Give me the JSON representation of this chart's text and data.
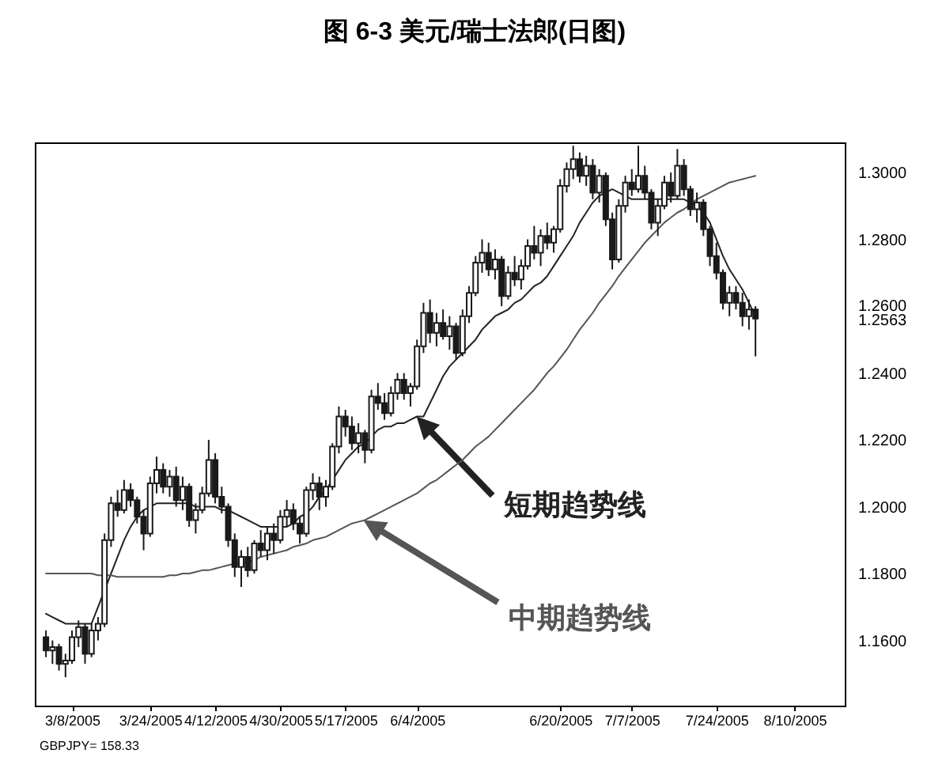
{
  "chart_data": {
    "type": "candlestick",
    "title": "图 6-3  美元/瑞士法郎(日图)",
    "categories": [
      null,
      null,
      null,
      null,
      "3/8/2005",
      null,
      null,
      null,
      null,
      null,
      null,
      null,
      null,
      null,
      null,
      null,
      "3/24/2005",
      null,
      null,
      null,
      null,
      null,
      null,
      null,
      null,
      null,
      "4/12/2005",
      null,
      null,
      null,
      null,
      null,
      null,
      null,
      null,
      null,
      "4/30/2005",
      null,
      null,
      null,
      null,
      null,
      null,
      null,
      null,
      null,
      "5/17/2005",
      null,
      null,
      null,
      null,
      null,
      null,
      null,
      null,
      null,
      null,
      "6/4/2005",
      null,
      null,
      null,
      null,
      null,
      null,
      null,
      null,
      null,
      null,
      null,
      null,
      null,
      null,
      null,
      null,
      null,
      null,
      null,
      null,
      null,
      "6/20/2005",
      null,
      null,
      null,
      null,
      null,
      null,
      null,
      null,
      null,
      null,
      "7/7/2005",
      null,
      null,
      null,
      null,
      null,
      null,
      null,
      null,
      null,
      null,
      null,
      null,
      "7/24/2005",
      null,
      null,
      null,
      null,
      null,
      null,
      null,
      null,
      null,
      null,
      null,
      "8/10/2005",
      null,
      null,
      null,
      null,
      null,
      null
    ],
    "ohlc": [
      [
        1.161,
        1.163,
        1.155,
        1.157
      ],
      [
        1.157,
        1.16,
        1.153,
        1.158
      ],
      [
        1.158,
        1.159,
        1.151,
        1.153
      ],
      [
        1.153,
        1.156,
        1.149,
        1.154
      ],
      [
        1.154,
        1.163,
        1.153,
        1.161
      ],
      [
        1.161,
        1.166,
        1.158,
        1.164
      ],
      [
        1.164,
        1.165,
        1.153,
        1.156
      ],
      [
        1.156,
        1.165,
        1.155,
        1.163
      ],
      [
        1.163,
        1.167,
        1.16,
        1.165
      ],
      [
        1.165,
        1.192,
        1.164,
        1.19
      ],
      [
        1.19,
        1.203,
        1.188,
        1.201
      ],
      [
        1.201,
        1.205,
        1.197,
        1.199
      ],
      [
        1.199,
        1.208,
        1.198,
        1.205
      ],
      [
        1.205,
        1.207,
        1.2,
        1.202
      ],
      [
        1.202,
        1.203,
        1.195,
        1.197
      ],
      [
        1.197,
        1.199,
        1.187,
        1.192
      ],
      [
        1.192,
        1.209,
        1.191,
        1.207
      ],
      [
        1.207,
        1.215,
        1.204,
        1.211
      ],
      [
        1.211,
        1.213,
        1.204,
        1.206
      ],
      [
        1.206,
        1.211,
        1.203,
        1.209
      ],
      [
        1.209,
        1.212,
        1.2,
        1.202
      ],
      [
        1.202,
        1.209,
        1.199,
        1.206
      ],
      [
        1.206,
        1.207,
        1.194,
        1.196
      ],
      [
        1.196,
        1.201,
        1.192,
        1.199
      ],
      [
        1.199,
        1.206,
        1.198,
        1.204
      ],
      [
        1.204,
        1.22,
        1.203,
        1.214
      ],
      [
        1.214,
        1.216,
        1.201,
        1.203
      ],
      [
        1.203,
        1.206,
        1.198,
        1.2
      ],
      [
        1.2,
        1.201,
        1.188,
        1.19
      ],
      [
        1.19,
        1.192,
        1.179,
        1.182
      ],
      [
        1.182,
        1.187,
        1.176,
        1.185
      ],
      [
        1.185,
        1.188,
        1.179,
        1.181
      ],
      [
        1.181,
        1.19,
        1.18,
        1.189
      ],
      [
        1.189,
        1.193,
        1.185,
        1.187
      ],
      [
        1.187,
        1.194,
        1.184,
        1.192
      ],
      [
        1.192,
        1.195,
        1.186,
        1.19
      ],
      [
        1.19,
        1.199,
        1.189,
        1.197
      ],
      [
        1.197,
        1.202,
        1.194,
        1.199
      ],
      [
        1.199,
        1.201,
        1.193,
        1.195
      ],
      [
        1.195,
        1.197,
        1.189,
        1.192
      ],
      [
        1.192,
        1.206,
        1.191,
        1.205
      ],
      [
        1.205,
        1.21,
        1.202,
        1.207
      ],
      [
        1.207,
        1.209,
        1.199,
        1.203
      ],
      [
        1.203,
        1.208,
        1.2,
        1.206
      ],
      [
        1.206,
        1.219,
        1.205,
        1.218
      ],
      [
        1.218,
        1.23,
        1.216,
        1.227
      ],
      [
        1.227,
        1.229,
        1.221,
        1.224
      ],
      [
        1.224,
        1.227,
        1.217,
        1.219
      ],
      [
        1.219,
        1.225,
        1.216,
        1.222
      ],
      [
        1.222,
        1.223,
        1.213,
        1.217
      ],
      [
        1.217,
        1.235,
        1.216,
        1.233
      ],
      [
        1.233,
        1.237,
        1.229,
        1.231
      ],
      [
        1.231,
        1.234,
        1.226,
        1.228
      ],
      [
        1.228,
        1.236,
        1.227,
        1.234
      ],
      [
        1.234,
        1.24,
        1.232,
        1.238
      ],
      [
        1.238,
        1.24,
        1.232,
        1.234
      ],
      [
        1.234,
        1.237,
        1.23,
        1.236
      ],
      [
        1.236,
        1.25,
        1.235,
        1.248
      ],
      [
        1.248,
        1.261,
        1.246,
        1.258
      ],
      [
        1.258,
        1.262,
        1.249,
        1.252
      ],
      [
        1.252,
        1.258,
        1.248,
        1.255
      ],
      [
        1.255,
        1.259,
        1.25,
        1.251
      ],
      [
        1.251,
        1.257,
        1.247,
        1.254
      ],
      [
        1.254,
        1.255,
        1.244,
        1.246
      ],
      [
        1.246,
        1.259,
        1.245,
        1.257
      ],
      [
        1.257,
        1.266,
        1.255,
        1.264
      ],
      [
        1.264,
        1.275,
        1.263,
        1.273
      ],
      [
        1.273,
        1.28,
        1.27,
        1.276
      ],
      [
        1.276,
        1.279,
        1.269,
        1.271
      ],
      [
        1.271,
        1.277,
        1.268,
        1.274
      ],
      [
        1.274,
        1.275,
        1.26,
        1.263
      ],
      [
        1.263,
        1.272,
        1.262,
        1.27
      ],
      [
        1.27,
        1.275,
        1.266,
        1.268
      ],
      [
        1.268,
        1.274,
        1.265,
        1.272
      ],
      [
        1.272,
        1.28,
        1.271,
        1.278
      ],
      [
        1.278,
        1.284,
        1.274,
        1.276
      ],
      [
        1.276,
        1.283,
        1.272,
        1.281
      ],
      [
        1.281,
        1.285,
        1.277,
        1.279
      ],
      [
        1.279,
        1.284,
        1.276,
        1.283
      ],
      [
        1.283,
        1.298,
        1.282,
        1.296
      ],
      [
        1.296,
        1.303,
        1.294,
        1.301
      ],
      [
        1.301,
        1.308,
        1.298,
        1.304
      ],
      [
        1.304,
        1.306,
        1.297,
        1.299
      ],
      [
        1.299,
        1.305,
        1.296,
        1.302
      ],
      [
        1.302,
        1.304,
        1.292,
        1.294
      ],
      [
        1.294,
        1.301,
        1.291,
        1.299
      ],
      [
        1.299,
        1.3,
        1.284,
        1.286
      ],
      [
        1.286,
        1.288,
        1.271,
        1.274
      ],
      [
        1.274,
        1.292,
        1.273,
        1.29
      ],
      [
        1.29,
        1.299,
        1.288,
        1.297
      ],
      [
        1.297,
        1.301,
        1.293,
        1.295
      ],
      [
        1.295,
        1.308,
        1.294,
        1.299
      ],
      [
        1.299,
        1.302,
        1.292,
        1.294
      ],
      [
        1.294,
        1.295,
        1.283,
        1.285
      ],
      [
        1.285,
        1.292,
        1.281,
        1.29
      ],
      [
        1.29,
        1.299,
        1.289,
        1.297
      ],
      [
        1.297,
        1.3,
        1.291,
        1.293
      ],
      [
        1.293,
        1.307,
        1.292,
        1.302
      ],
      [
        1.302,
        1.304,
        1.293,
        1.295
      ],
      [
        1.295,
        1.296,
        1.287,
        1.289
      ],
      [
        1.289,
        1.294,
        1.285,
        1.291
      ],
      [
        1.291,
        1.292,
        1.281,
        1.283
      ],
      [
        1.283,
        1.284,
        1.272,
        1.275
      ],
      [
        1.275,
        1.279,
        1.268,
        1.27
      ],
      [
        1.27,
        1.271,
        1.259,
        1.261
      ],
      [
        1.261,
        1.266,
        1.257,
        1.264
      ],
      [
        1.264,
        1.266,
        1.259,
        1.261
      ],
      [
        1.261,
        1.264,
        1.254,
        1.257
      ],
      [
        1.257,
        1.262,
        1.253,
        1.259
      ],
      [
        1.259,
        1.26,
        1.245,
        1.2563
      ],
      null,
      null,
      null,
      null,
      null,
      null,
      null,
      null,
      null,
      null,
      null,
      null
    ],
    "color": "#1a1a1a",
    "series": [
      {
        "name": "短期趋势线",
        "type": "line",
        "color": "#222222",
        "values": [
          1.168,
          1.167,
          1.166,
          1.165,
          1.165,
          1.165,
          1.165,
          1.165,
          1.17,
          1.175,
          1.18,
          1.185,
          1.19,
          1.194,
          1.197,
          1.199,
          1.2,
          1.201,
          1.201,
          1.201,
          1.201,
          1.201,
          1.201,
          1.2,
          1.2,
          1.2,
          1.2,
          1.199,
          1.199,
          1.198,
          1.197,
          1.196,
          1.195,
          1.194,
          1.194,
          1.194,
          1.194,
          1.194,
          1.195,
          1.197,
          1.198,
          1.2,
          1.203,
          1.205,
          1.208,
          1.211,
          1.214,
          1.216,
          1.218,
          1.219,
          1.221,
          1.223,
          1.224,
          1.224,
          1.225,
          1.225,
          1.226,
          1.227,
          1.227,
          1.231,
          1.235,
          1.239,
          1.242,
          1.244,
          1.246,
          1.248,
          1.25,
          1.253,
          1.255,
          1.257,
          1.258,
          1.259,
          1.261,
          1.262,
          1.264,
          1.266,
          1.267,
          1.269,
          1.272,
          1.275,
          1.278,
          1.281,
          1.285,
          1.288,
          1.291,
          1.293,
          1.294,
          1.295,
          1.294,
          1.293,
          1.292,
          1.292,
          1.292,
          1.292,
          1.292,
          1.292,
          1.292,
          1.292,
          1.292,
          1.291,
          1.29,
          1.288,
          1.285,
          1.28,
          1.275,
          1.271,
          1.268,
          1.265,
          1.261,
          1.257,
          null,
          null,
          null,
          null,
          null,
          null,
          null,
          null,
          null,
          null,
          null,
          null
        ]
      },
      {
        "name": "中期趋势线",
        "type": "line",
        "color": "#555555",
        "values": [
          1.18,
          1.18,
          1.18,
          1.18,
          1.18,
          1.18,
          1.18,
          1.18,
          1.1795,
          1.1795,
          1.1795,
          1.179,
          1.179,
          1.179,
          1.179,
          1.179,
          1.179,
          1.179,
          1.179,
          1.1795,
          1.1795,
          1.18,
          1.18,
          1.1805,
          1.181,
          1.181,
          1.1815,
          1.182,
          1.1825,
          1.183,
          1.183,
          1.1835,
          1.184,
          1.185,
          1.1855,
          1.186,
          1.1865,
          1.187,
          1.188,
          1.1885,
          1.189,
          1.19,
          1.1905,
          1.191,
          1.192,
          1.193,
          1.194,
          1.195,
          1.1955,
          1.196,
          1.197,
          1.198,
          1.199,
          1.2,
          1.201,
          1.202,
          1.203,
          1.204,
          1.2055,
          1.207,
          1.208,
          1.2095,
          1.211,
          1.2125,
          1.214,
          1.216,
          1.218,
          1.2195,
          1.221,
          1.223,
          1.225,
          1.227,
          1.229,
          1.231,
          1.233,
          1.235,
          1.2375,
          1.24,
          1.242,
          1.2445,
          1.247,
          1.25,
          1.253,
          1.2555,
          1.258,
          1.261,
          1.2635,
          1.266,
          1.269,
          1.2715,
          1.274,
          1.2765,
          1.279,
          1.281,
          1.283,
          1.285,
          1.2865,
          1.288,
          1.289,
          1.2905,
          1.292,
          1.293,
          1.294,
          1.295,
          1.296,
          1.297,
          1.2975,
          1.298,
          1.2985,
          1.299,
          null,
          null,
          null,
          null,
          null,
          null,
          null,
          null,
          null,
          null,
          null,
          null
        ]
      }
    ],
    "ylim": [
      1.1405,
      1.309
    ],
    "yticks": [
      {
        "value": 1.16,
        "label": "1.1600"
      },
      {
        "value": 1.18,
        "label": "1.1800"
      },
      {
        "value": 1.2,
        "label": "1.2000"
      },
      {
        "value": 1.22,
        "label": "1.2200"
      },
      {
        "value": 1.24,
        "label": "1.2400"
      },
      1.2563,
      {
        "value": 1.26,
        "label": "1.2600"
      },
      {
        "value": 1.28,
        "label": "1.2800"
      },
      {
        "value": 1.3,
        "label": "1.3000"
      }
    ],
    "annotations": [
      "GBPJPY= 158.33"
    ]
  }
}
